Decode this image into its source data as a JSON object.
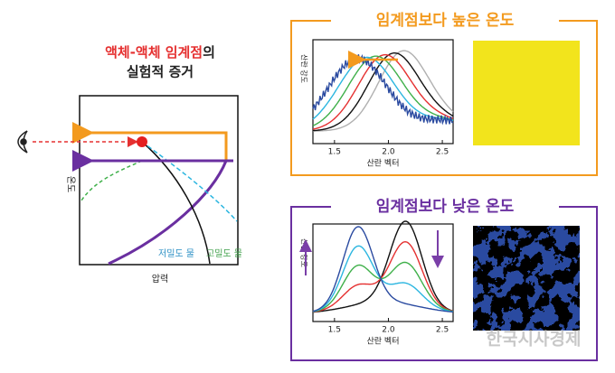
{
  "title": {
    "highlight": "액체-액체 임계점",
    "suffix": "의",
    "line2": "실험적 증거"
  },
  "phase_diagram": {
    "y_label": "온도",
    "x_label": "압력",
    "low_density": "저밀도 물",
    "high_density": "고밀도 물"
  },
  "panels": [
    {
      "title": "임계점보다 높은 온도",
      "y_label": "산란 강도",
      "x_label": "산란 벡터",
      "xticks": [
        "1.5",
        "2.0",
        "2.5"
      ]
    },
    {
      "title": "임계점보다 낮은 온도",
      "y_label": "산란 강도",
      "x_label": "산란 벡터",
      "xticks": [
        "1.5",
        "2.0",
        "2.5"
      ]
    }
  ],
  "watermark": "한국시사경제"
}
